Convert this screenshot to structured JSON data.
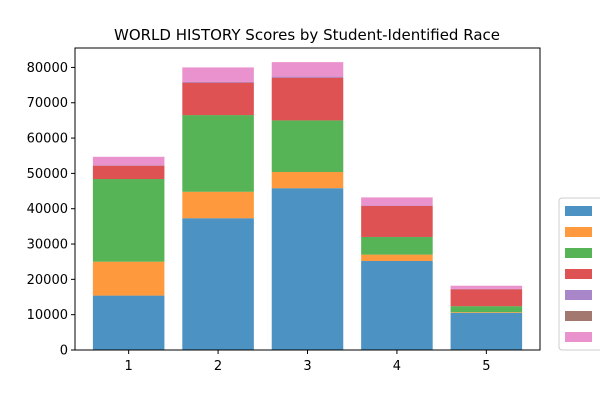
{
  "chart_data": {
    "type": "bar",
    "stacked": true,
    "title": "WORLD HISTORY Scores by Student-Identified Race",
    "xlabel": "",
    "ylabel": "",
    "categories": [
      "1",
      "2",
      "3",
      "4",
      "5"
    ],
    "ylim": [
      0,
      85500
    ],
    "yticks": [
      0,
      10000,
      20000,
      30000,
      40000,
      50000,
      60000,
      70000,
      80000
    ],
    "ytick_labels": [
      "0",
      "10000",
      "20000",
      "30000",
      "40000",
      "50000",
      "60000",
      "70000",
      "80000"
    ],
    "grid": false,
    "legend_position": "right (labels not visible)",
    "series": [
      {
        "color": "#1f77b4",
        "values": [
          15400,
          37300,
          45800,
          25200,
          10500
        ]
      },
      {
        "color": "#ff7f0e",
        "values": [
          9600,
          7500,
          4600,
          1800,
          200
        ]
      },
      {
        "color": "#2ca02c",
        "values": [
          23400,
          21700,
          14600,
          5000,
          1700
        ]
      },
      {
        "color": "#d62728",
        "values": [
          3800,
          9200,
          12100,
          8800,
          4800
        ]
      },
      {
        "color": "#9467bd",
        "values": [
          100,
          200,
          300,
          100,
          100
        ]
      },
      {
        "color": "#8c564b",
        "values": [
          0,
          0,
          0,
          0,
          0
        ]
      },
      {
        "color": "#e377c2",
        "values": [
          2400,
          4100,
          4100,
          2300,
          900
        ]
      }
    ]
  }
}
